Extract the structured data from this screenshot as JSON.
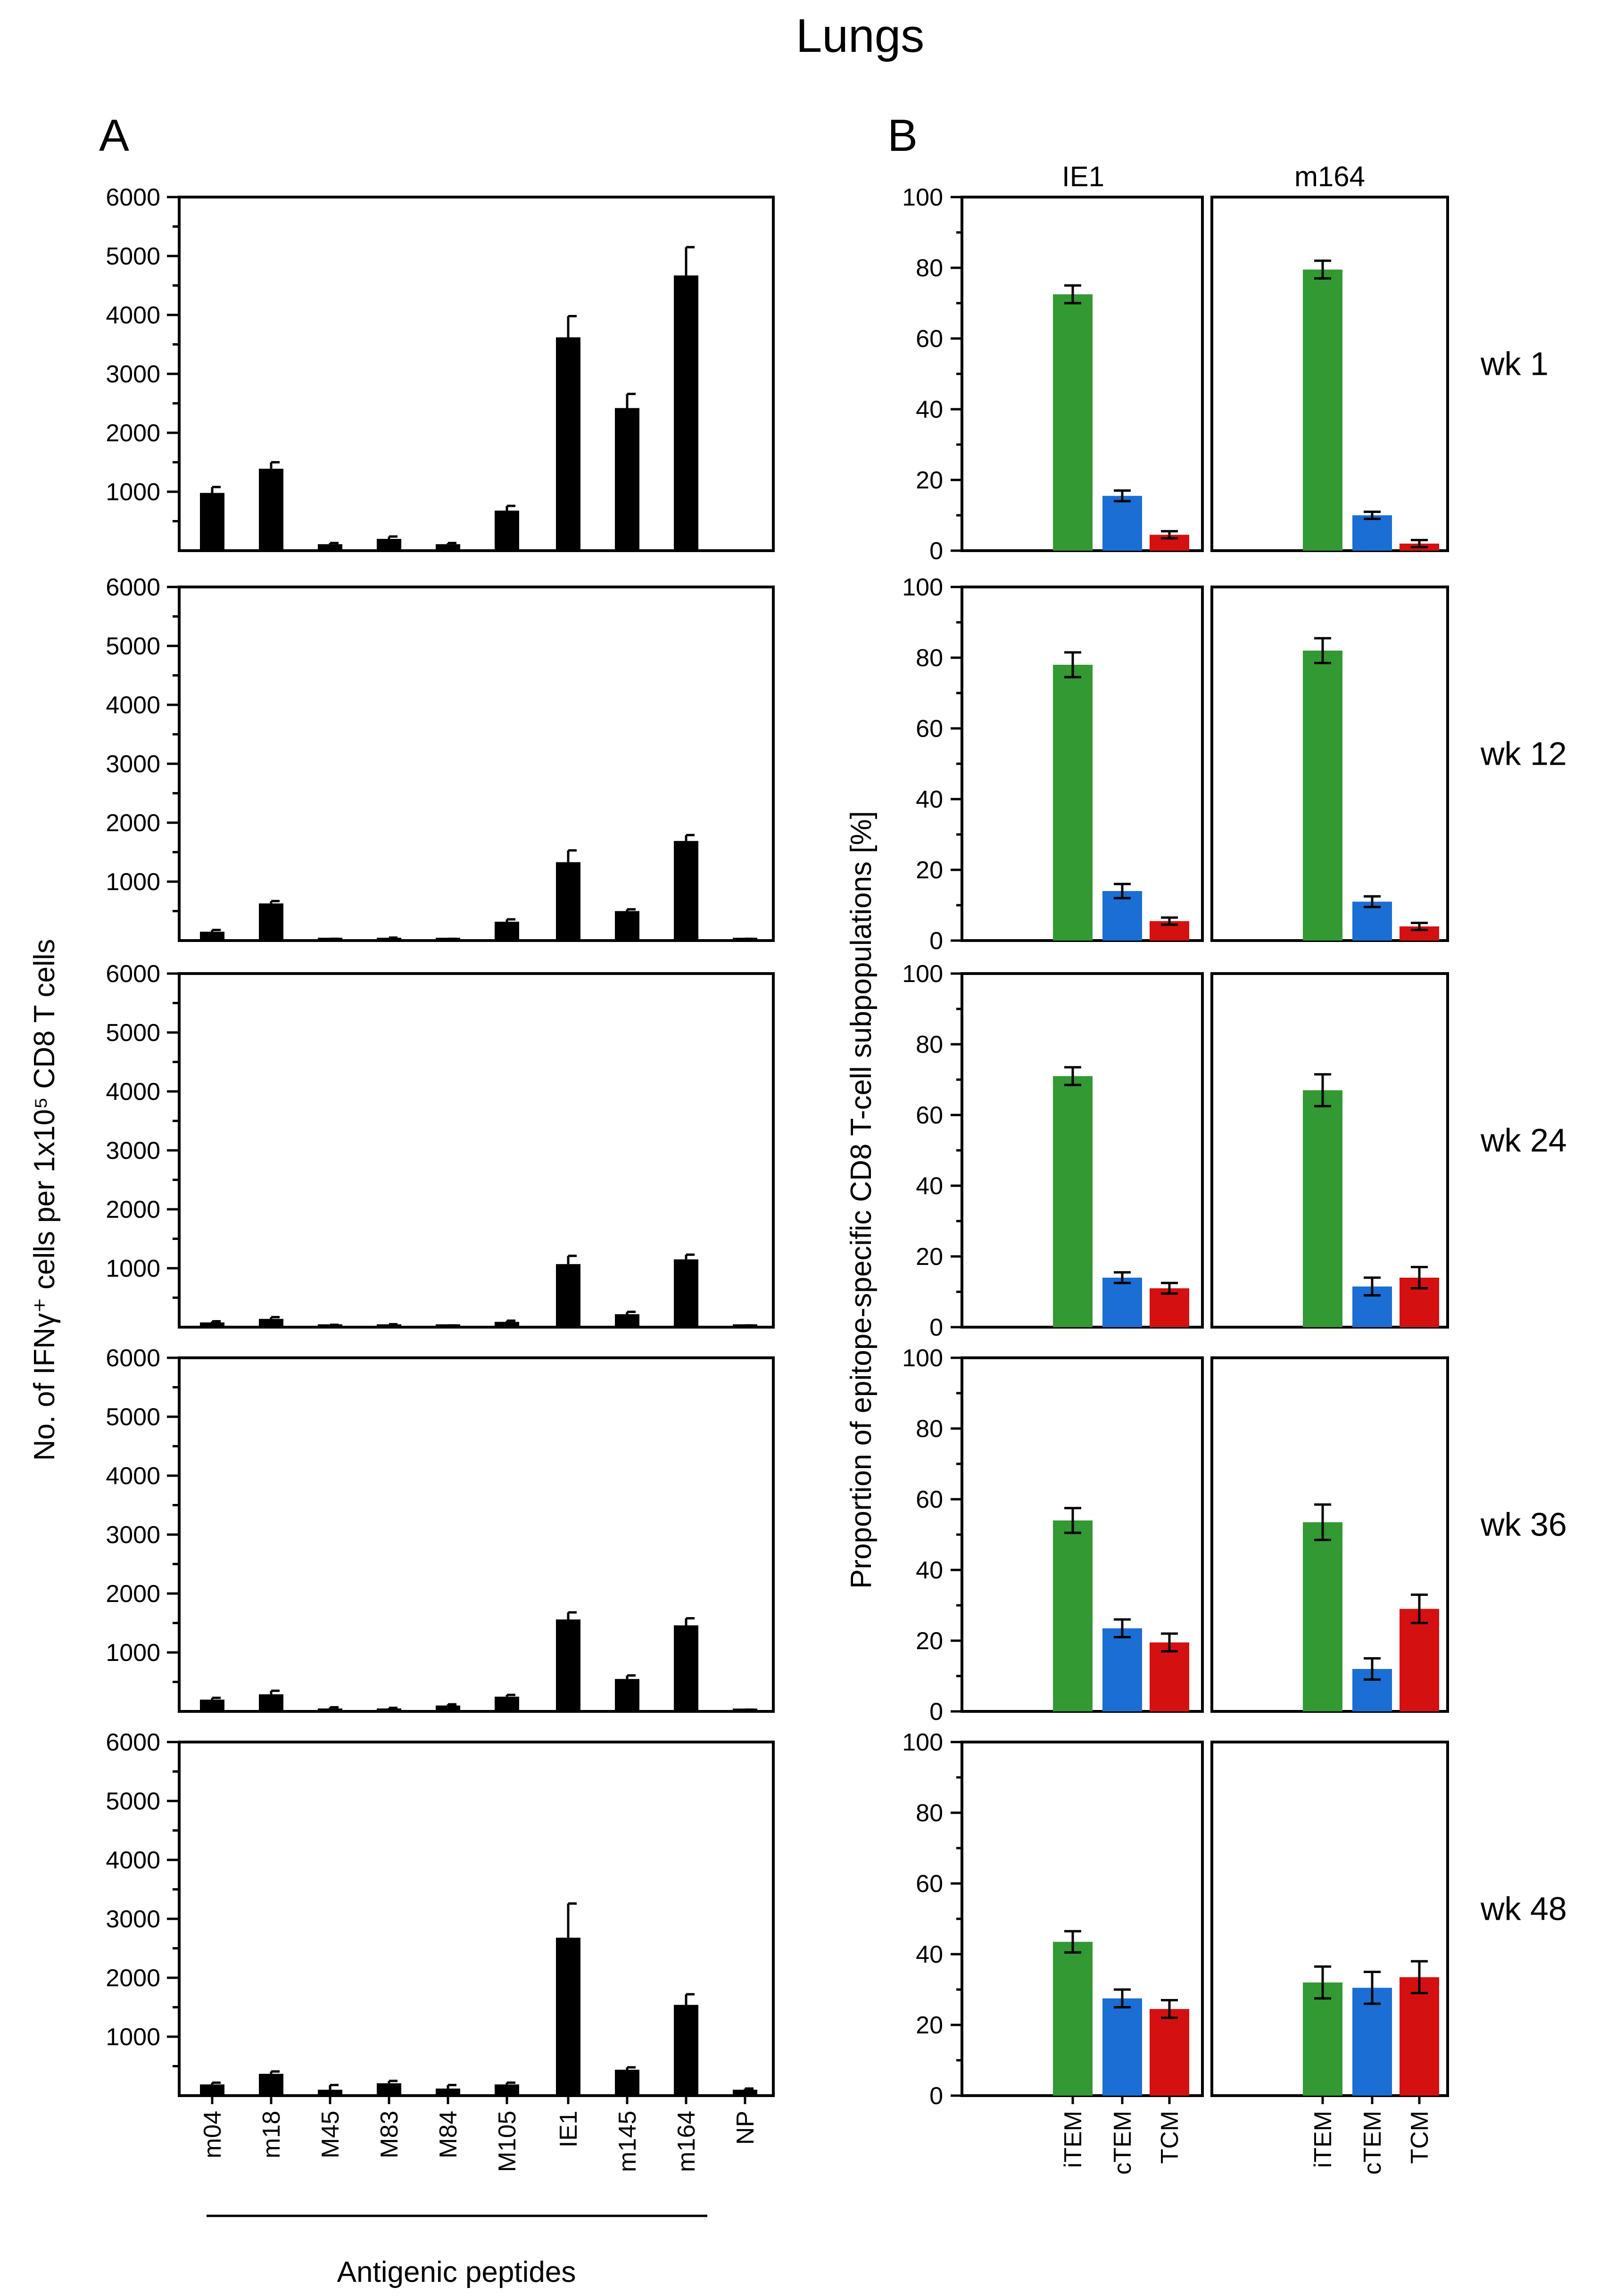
{
  "title": "Lungs",
  "panel_labels": {
    "a": "A",
    "b": "B"
  },
  "panel_a": {
    "ylabel": "No. of IFNγ⁺ cells per 1x10⁵ CD8 T cells",
    "xlabel": "Antigenic peptides",
    "yticks": [
      "1000",
      "2000",
      "3000",
      "4000",
      "5000",
      "6000"
    ]
  },
  "panel_b": {
    "ylabel": "Proportion of epitope-specific CD8 T-cell subpopulations [%]",
    "yticks": [
      "0",
      "20",
      "40",
      "60",
      "80",
      "100"
    ],
    "columns": [
      "IE1",
      "m164"
    ]
  },
  "weeks": [
    "wk 1",
    "wk 12",
    "wk 24",
    "wk 36",
    "wk 48"
  ],
  "colors": {
    "iTEM": "#339933",
    "cTEM": "#1a6ed4",
    "TCM": "#d41010",
    "bar": "#000000"
  },
  "chart_data": [
    {
      "type": "bar",
      "panel": "A",
      "categories": [
        "m04",
        "m18",
        "M45",
        "M83",
        "M84",
        "M105",
        "IE1",
        "m145",
        "m164",
        "NP"
      ],
      "ylim": [
        0,
        6000
      ],
      "series": [
        {
          "name": "wk 1",
          "values": [
            980,
            1390,
            110,
            200,
            110,
            680,
            3620,
            2420,
            4670,
            0
          ],
          "errors": [
            100,
            110,
            20,
            40,
            20,
            80,
            360,
            240,
            480,
            0
          ]
        },
        {
          "name": "wk 12",
          "values": [
            150,
            630,
            20,
            40,
            20,
            320,
            1330,
            500,
            1690,
            20
          ],
          "errors": [
            30,
            40,
            10,
            10,
            10,
            40,
            200,
            30,
            100,
            10
          ]
        },
        {
          "name": "wk 24",
          "values": [
            80,
            140,
            30,
            40,
            20,
            90,
            1070,
            220,
            1150,
            20
          ],
          "errors": [
            20,
            30,
            10,
            10,
            10,
            20,
            140,
            40,
            80,
            10
          ]
        },
        {
          "name": "wk 36",
          "values": [
            200,
            290,
            50,
            50,
            100,
            250,
            1560,
            550,
            1460,
            20
          ],
          "errors": [
            30,
            60,
            20,
            10,
            20,
            30,
            120,
            60,
            120,
            10
          ]
        },
        {
          "name": "wk 48",
          "values": [
            190,
            370,
            100,
            210,
            120,
            190,
            2680,
            440,
            1540,
            100
          ],
          "errors": [
            30,
            40,
            80,
            40,
            60,
            30,
            580,
            40,
            180,
            20
          ]
        }
      ]
    },
    {
      "type": "bar",
      "panel": "B",
      "categories": [
        "iTEM",
        "cTEM",
        "TCM"
      ],
      "ylim": [
        0,
        100
      ],
      "groups": [
        {
          "week": "wk 1",
          "column": "IE1",
          "values": [
            72.5,
            15.5,
            4.5
          ],
          "errors": [
            2.5,
            1.5,
            1.0
          ]
        },
        {
          "week": "wk 1",
          "column": "m164",
          "values": [
            79.5,
            10.0,
            2.0
          ],
          "errors": [
            2.5,
            1.0,
            1.0
          ]
        },
        {
          "week": "wk 12",
          "column": "IE1",
          "values": [
            78.0,
            14.0,
            5.5
          ],
          "errors": [
            3.5,
            2.0,
            1.0
          ]
        },
        {
          "week": "wk 12",
          "column": "m164",
          "values": [
            82.0,
            11.0,
            4.0
          ],
          "errors": [
            3.5,
            1.5,
            1.0
          ]
        },
        {
          "week": "wk 24",
          "column": "IE1",
          "values": [
            71.0,
            14.0,
            11.0
          ],
          "errors": [
            2.5,
            1.5,
            1.5
          ]
        },
        {
          "week": "wk 24",
          "column": "m164",
          "values": [
            67.0,
            11.5,
            14.0
          ],
          "errors": [
            4.5,
            2.5,
            3.0
          ]
        },
        {
          "week": "wk 36",
          "column": "IE1",
          "values": [
            54.0,
            23.5,
            19.5
          ],
          "errors": [
            3.5,
            2.5,
            2.5
          ]
        },
        {
          "week": "wk 36",
          "column": "m164",
          "values": [
            53.5,
            12.0,
            29.0
          ],
          "errors": [
            5.0,
            3.0,
            4.0
          ]
        },
        {
          "week": "wk 48",
          "column": "IE1",
          "values": [
            43.5,
            27.5,
            24.5
          ],
          "errors": [
            3.0,
            2.5,
            2.5
          ]
        },
        {
          "week": "wk 48",
          "column": "m164",
          "values": [
            32.0,
            30.5,
            33.5
          ],
          "errors": [
            4.5,
            4.5,
            4.5
          ]
        }
      ]
    }
  ]
}
